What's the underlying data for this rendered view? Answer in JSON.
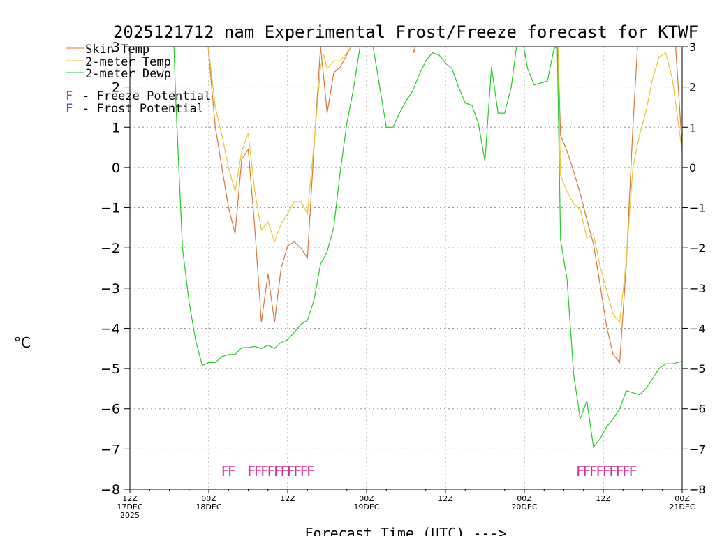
{
  "chart_data": {
    "type": "line",
    "title": "2025121712 nam Experimental Frost/Freeze forecast for KTWF",
    "ylabel": "°C",
    "xlabel": "Forecast Time (UTC) --->",
    "ylim": [
      -8,
      3
    ],
    "yticks": [
      3,
      2,
      1,
      0,
      -1,
      -2,
      -3,
      -4,
      -5,
      -6,
      -7,
      -8
    ],
    "xlim": [
      0,
      84
    ],
    "xticks": [
      {
        "hour": 0,
        "label1": "12Z",
        "label2": "17DEC",
        "label3": "2025"
      },
      {
        "hour": 12,
        "label1": "00Z",
        "label2": "18DEC",
        "label3": ""
      },
      {
        "hour": 24,
        "label1": "12Z",
        "label2": "",
        "label3": ""
      },
      {
        "hour": 36,
        "label1": "00Z",
        "label2": "19DEC",
        "label3": ""
      },
      {
        "hour": 48,
        "label1": "12Z",
        "label2": "",
        "label3": ""
      },
      {
        "hour": 60,
        "label1": "00Z",
        "label2": "20DEC",
        "label3": ""
      },
      {
        "hour": 72,
        "label1": "12Z",
        "label2": "",
        "label3": ""
      },
      {
        "hour": 84,
        "label1": "00Z",
        "label2": "21DEC",
        "label3": ""
      }
    ],
    "grid": true,
    "series": [
      {
        "name": "Skin Temp",
        "color": "#d8783a",
        "points": [
          [
            11.9,
            3.0
          ],
          [
            12.0,
            2.8
          ],
          [
            13.0,
            1.0
          ],
          [
            14.0,
            0.0
          ],
          [
            15.0,
            -1.0
          ],
          [
            16.0,
            -1.65
          ],
          [
            17.0,
            0.2
          ],
          [
            18.0,
            0.45
          ],
          [
            19.0,
            -1.5
          ],
          [
            20.0,
            -3.85
          ],
          [
            21.0,
            -2.65
          ],
          [
            22.0,
            -3.85
          ],
          [
            23.0,
            -2.5
          ],
          [
            24.0,
            -1.95
          ],
          [
            25.0,
            -1.85
          ],
          [
            26.0,
            -2.0
          ],
          [
            27.0,
            -2.25
          ],
          [
            28.0,
            0.5
          ],
          [
            29.0,
            3.0
          ],
          [
            29.5,
            2.2
          ],
          [
            30.0,
            1.35
          ],
          [
            31.0,
            2.35
          ],
          [
            32.0,
            2.5
          ],
          [
            33.0,
            2.8
          ],
          [
            33.6,
            3.0
          ],
          [
            null,
            null
          ],
          [
            43.0,
            3.0
          ],
          [
            43.2,
            2.85
          ],
          [
            43.4,
            3.0
          ],
          [
            null,
            null
          ],
          [
            65.1,
            3.0
          ],
          [
            65.5,
            0.8
          ],
          [
            66.5,
            0.4
          ],
          [
            67.5,
            -0.1
          ],
          [
            68.5,
            -0.65
          ],
          [
            69.5,
            -1.3
          ],
          [
            70.5,
            -1.9
          ],
          [
            71.5,
            -2.9
          ],
          [
            72.5,
            -3.95
          ],
          [
            73.5,
            -4.65
          ],
          [
            74.5,
            -4.85
          ],
          [
            75.5,
            -2.4
          ],
          [
            76.5,
            1.0
          ],
          [
            77.2,
            3.0
          ],
          [
            null,
            null
          ],
          [
            83.0,
            3.0
          ],
          [
            84.0,
            0.5
          ]
        ]
      },
      {
        "name": "2-meter Temp",
        "color": "#e8c830",
        "points": [
          [
            11.9,
            3.0
          ],
          [
            12.0,
            2.9
          ],
          [
            13.0,
            1.5
          ],
          [
            14.0,
            0.8
          ],
          [
            15.0,
            0.0
          ],
          [
            16.0,
            -0.6
          ],
          [
            17.0,
            0.4
          ],
          [
            18.0,
            0.85
          ],
          [
            19.0,
            -0.6
          ],
          [
            20.0,
            -1.55
          ],
          [
            21.0,
            -1.35
          ],
          [
            22.0,
            -1.85
          ],
          [
            23.0,
            -1.4
          ],
          [
            24.0,
            -1.15
          ],
          [
            25.0,
            -0.85
          ],
          [
            26.0,
            -0.85
          ],
          [
            27.0,
            -1.15
          ],
          [
            28.0,
            0.6
          ],
          [
            29.0,
            2.5
          ],
          [
            29.5,
            2.8
          ],
          [
            30.0,
            2.45
          ],
          [
            31.0,
            2.65
          ],
          [
            32.0,
            2.65
          ],
          [
            33.0,
            2.85
          ],
          [
            33.6,
            3.0
          ],
          [
            null,
            null
          ],
          [
            65.1,
            3.0
          ],
          [
            65.5,
            -0.2
          ],
          [
            66.5,
            -0.6
          ],
          [
            67.5,
            -0.9
          ],
          [
            68.5,
            -1.05
          ],
          [
            69.5,
            -1.75
          ],
          [
            70.5,
            -1.65
          ],
          [
            71.5,
            -2.45
          ],
          [
            72.5,
            -3.05
          ],
          [
            73.5,
            -3.65
          ],
          [
            74.5,
            -3.85
          ],
          [
            75.5,
            -2.3
          ],
          [
            76.5,
            0.0
          ],
          [
            77.5,
            0.8
          ],
          [
            78.5,
            1.4
          ],
          [
            79.5,
            2.2
          ],
          [
            80.5,
            2.75
          ],
          [
            81.5,
            2.85
          ],
          [
            82.5,
            2.2
          ],
          [
            84.0,
            0.4
          ]
        ]
      },
      {
        "name": "2-meter Dewp",
        "color": "#22cc22",
        "points": [
          [
            6.7,
            3.0
          ],
          [
            7.0,
            1.6
          ],
          [
            8.0,
            -2.0
          ],
          [
            9.0,
            -3.35
          ],
          [
            10.0,
            -4.3
          ],
          [
            11.0,
            -4.92
          ],
          [
            12.0,
            -4.85
          ],
          [
            13.0,
            -4.85
          ],
          [
            14.0,
            -4.7
          ],
          [
            15.0,
            -4.65
          ],
          [
            16.0,
            -4.65
          ],
          [
            17.0,
            -4.48
          ],
          [
            18.0,
            -4.48
          ],
          [
            19.0,
            -4.45
          ],
          [
            20.0,
            -4.5
          ],
          [
            21.0,
            -4.42
          ],
          [
            22.0,
            -4.5
          ],
          [
            23.0,
            -4.35
          ],
          [
            24.0,
            -4.28
          ],
          [
            25.0,
            -4.1
          ],
          [
            26.0,
            -3.9
          ],
          [
            27.0,
            -3.8
          ],
          [
            28.0,
            -3.3
          ],
          [
            29.0,
            -2.4
          ],
          [
            30.0,
            -2.1
          ],
          [
            31.0,
            -1.5
          ],
          [
            32.0,
            -0.1
          ],
          [
            33.0,
            1.1
          ],
          [
            34.0,
            1.95
          ],
          [
            35.0,
            3.0
          ],
          [
            null,
            null
          ],
          [
            37.0,
            3.0
          ],
          [
            38.0,
            2.0
          ],
          [
            39.0,
            1.0
          ],
          [
            40.0,
            1.0
          ],
          [
            41.0,
            1.35
          ],
          [
            42.0,
            1.65
          ],
          [
            43.0,
            1.9
          ],
          [
            44.0,
            2.3
          ],
          [
            45.0,
            2.65
          ],
          [
            46.0,
            2.85
          ],
          [
            47.0,
            2.8
          ],
          [
            48.0,
            2.6
          ],
          [
            49.0,
            2.45
          ],
          [
            50.0,
            2.0
          ],
          [
            51.0,
            1.6
          ],
          [
            52.0,
            1.55
          ],
          [
            53.0,
            1.1
          ],
          [
            54.0,
            0.15
          ],
          [
            55.0,
            2.5
          ],
          [
            56.0,
            1.35
          ],
          [
            57.0,
            1.35
          ],
          [
            58.0,
            2.0
          ],
          [
            58.8,
            3.0
          ],
          [
            null,
            null
          ],
          [
            59.9,
            3.0
          ],
          [
            60.5,
            2.45
          ],
          [
            61.5,
            2.05
          ],
          [
            62.5,
            2.1
          ],
          [
            63.5,
            2.15
          ],
          [
            64.5,
            2.95
          ],
          [
            65.0,
            3.0
          ],
          [
            65.5,
            -1.8
          ],
          [
            66.5,
            -2.8
          ],
          [
            67.5,
            -5.15
          ],
          [
            68.5,
            -6.25
          ],
          [
            69.5,
            -5.8
          ],
          [
            70.5,
            -6.95
          ],
          [
            71.5,
            -6.75
          ],
          [
            72.5,
            -6.45
          ],
          [
            73.5,
            -6.25
          ],
          [
            74.5,
            -6.0
          ],
          [
            75.5,
            -5.55
          ],
          [
            76.5,
            -5.6
          ],
          [
            77.5,
            -5.65
          ],
          [
            78.5,
            -5.5
          ],
          [
            79.5,
            -5.25
          ],
          [
            80.5,
            -5.0
          ],
          [
            81.5,
            -4.88
          ],
          [
            82.5,
            -4.88
          ],
          [
            84.0,
            -4.82
          ]
        ]
      }
    ],
    "freeze_markers": {
      "letter": "F",
      "color": "#d0309a",
      "level": -7.55,
      "hours": [
        14.5,
        15.5,
        18.5,
        19.5,
        20.5,
        21.5,
        22.5,
        23.5,
        24.5,
        25.5,
        26.5,
        27.5,
        68.5,
        69.5,
        70.5,
        71.5,
        72.5,
        73.5,
        74.5,
        75.5,
        76.5
      ]
    },
    "legend": {
      "placement": "top-left",
      "entries": [
        "Skin Temp",
        "2-meter Temp",
        "2-meter Dewp"
      ],
      "markers": [
        {
          "letter": "F",
          "color": "#d0309a",
          "text": "- Freeze Potential"
        },
        {
          "letter": "F",
          "color": "#4050d8",
          "text": "- Frost Potential"
        }
      ]
    }
  }
}
